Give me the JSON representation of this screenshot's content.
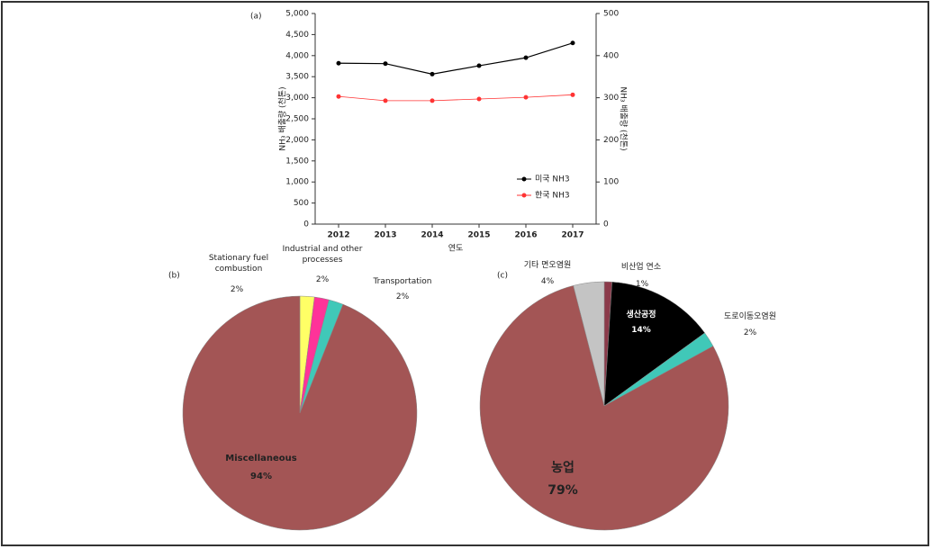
{
  "chart_data": [
    {
      "type": "line",
      "label": "(a)",
      "x_label": "연도",
      "y_label": "NH₃ 배출량 (천톤)",
      "y2_label": "NH₃ 배출량 (천톤)",
      "categories": [
        "2012",
        "2013",
        "2014",
        "2015",
        "2016",
        "2017"
      ],
      "series": [
        {
          "name": "미국 NH3",
          "color": "#000000",
          "values": [
            3820,
            3810,
            3560,
            3760,
            3950,
            4300
          ]
        },
        {
          "name": "한국 NH3",
          "color": "#ff3333",
          "axis": "y2",
          "values": [
            303,
            293,
            293,
            297,
            301,
            307
          ]
        }
      ],
      "ylim": [
        0,
        5000
      ],
      "yticks": [
        0,
        500,
        {
          "value": 1000,
          "label": "1,000"
        },
        {
          "value": 1500,
          "label": "1,500"
        },
        {
          "value": 2000,
          "label": "2,000"
        },
        {
          "value": 2500,
          "label": "2,500"
        },
        {
          "value": 3000,
          "label": "3,000"
        },
        {
          "value": 3500,
          "label": "3,500"
        },
        {
          "value": 4000,
          "label": "4,000"
        },
        {
          "value": 4500,
          "label": "4,500"
        },
        {
          "value": 5000,
          "label": "5,000"
        }
      ],
      "y2lim": [
        0,
        500
      ],
      "y2ticks": [
        0,
        100,
        200,
        300,
        400,
        500
      ],
      "legend": "lower right"
    },
    {
      "type": "pie",
      "label": "(b)",
      "categories": [
        "Stationary fuel combustion",
        "Industrial and other processes",
        "Transportation",
        "Miscellaneous"
      ],
      "values": [
        2,
        2,
        2,
        94
      ],
      "value_labels": [
        "2%",
        "2%",
        "2%",
        "94%"
      ],
      "colors": [
        "#ffff66",
        "#ff3399",
        "#40c8b8",
        "#a35555"
      ]
    },
    {
      "type": "pie",
      "label": "(c)",
      "categories": [
        "비산업 연소",
        "생산공정",
        "도로이동오염원",
        "농업",
        "기타 면오염원"
      ],
      "values": [
        1,
        14,
        2,
        79,
        4
      ],
      "value_labels": [
        "1%",
        "14%",
        "2%",
        "79%",
        "4%"
      ],
      "colors": [
        "#8b3a4a",
        "#000000",
        "#40c8b8",
        "#a35555",
        "#c4c4c4"
      ]
    }
  ]
}
